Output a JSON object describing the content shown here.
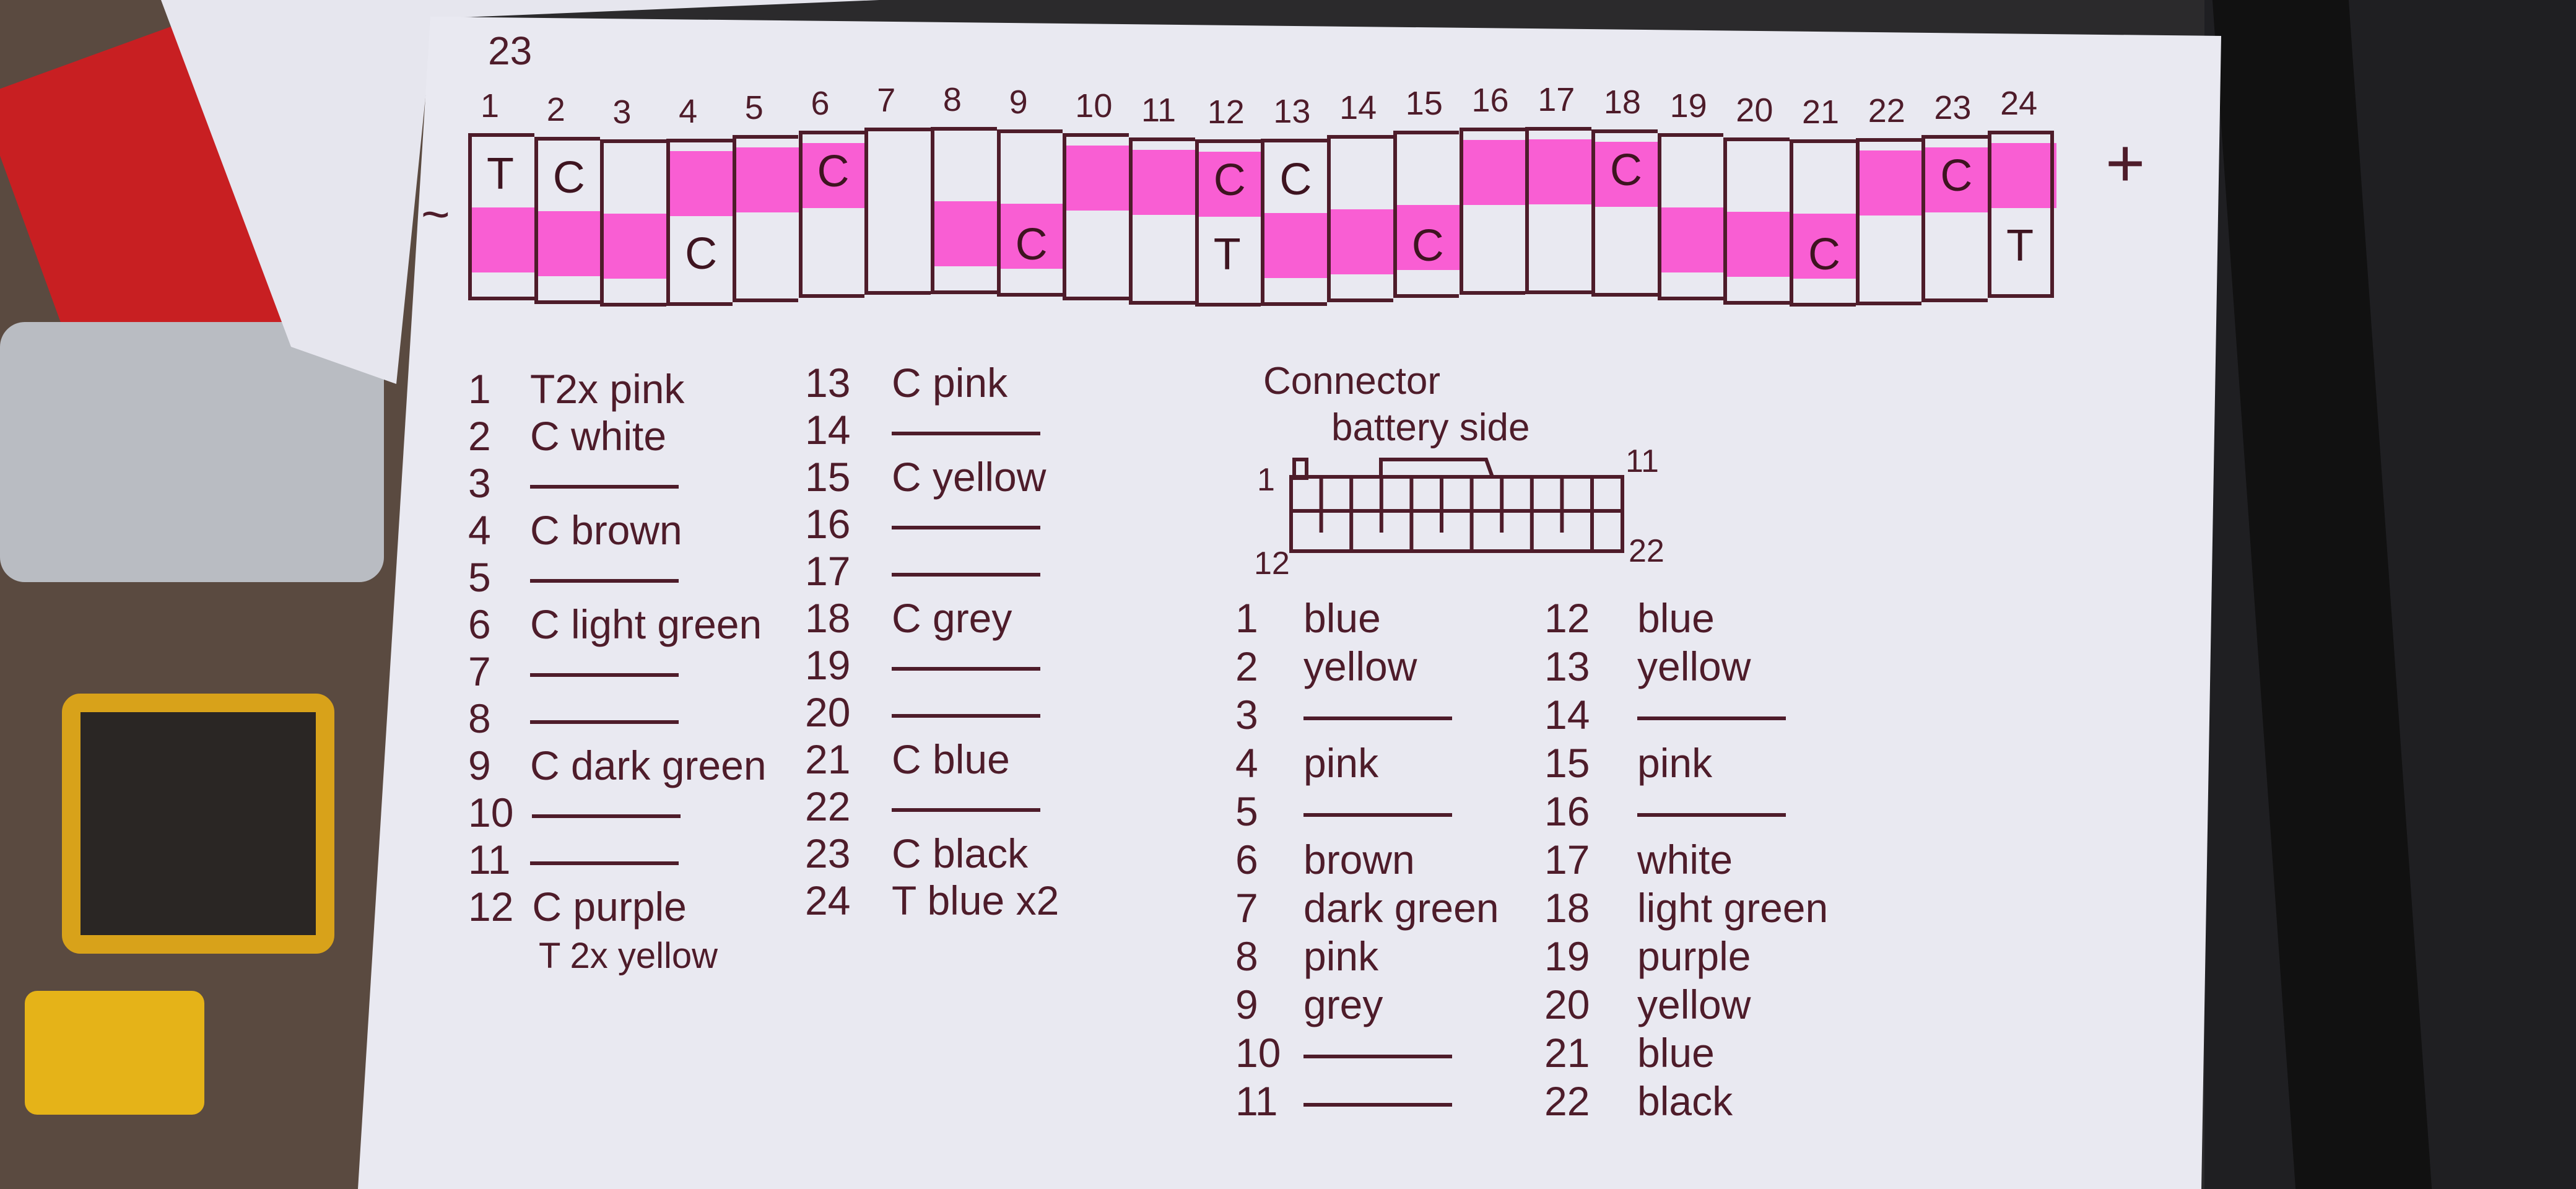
{
  "colors": {
    "ink": "#4e1c2a",
    "highlighter": "#ff28c8",
    "paper": "#e9e9f1"
  },
  "strip": {
    "corner_note": "23",
    "minus_label": "~",
    "plus_label": "+",
    "cells": [
      {
        "num": "1",
        "top": "T",
        "bottom": "",
        "highlight": "bottom"
      },
      {
        "num": "2",
        "top": "C",
        "bottom": "",
        "highlight": "bottom"
      },
      {
        "num": "3",
        "top": "",
        "bottom": "",
        "highlight": "bottom"
      },
      {
        "num": "4",
        "top": "",
        "bottom": "C",
        "highlight": "top"
      },
      {
        "num": "5",
        "top": "",
        "bottom": "",
        "highlight": "top"
      },
      {
        "num": "6",
        "top": "C",
        "bottom": "",
        "highlight": "top"
      },
      {
        "num": "7",
        "top": "",
        "bottom": "",
        "highlight": ""
      },
      {
        "num": "8",
        "top": "",
        "bottom": "",
        "highlight": "bottom"
      },
      {
        "num": "9",
        "top": "",
        "bottom": "C",
        "highlight": "bottom"
      },
      {
        "num": "10",
        "top": "",
        "bottom": "",
        "highlight": "top"
      },
      {
        "num": "11",
        "top": "",
        "bottom": "",
        "highlight": "top"
      },
      {
        "num": "12",
        "top": "C",
        "bottom": "T",
        "highlight": "top"
      },
      {
        "num": "13",
        "top": "C",
        "bottom": "",
        "highlight": "bottom"
      },
      {
        "num": "14",
        "top": "",
        "bottom": "",
        "highlight": "bottom"
      },
      {
        "num": "15",
        "top": "",
        "bottom": "C",
        "highlight": "bottom"
      },
      {
        "num": "16",
        "top": "",
        "bottom": "",
        "highlight": "top"
      },
      {
        "num": "17",
        "top": "",
        "bottom": "",
        "highlight": "top"
      },
      {
        "num": "18",
        "top": "C",
        "bottom": "",
        "highlight": "top"
      },
      {
        "num": "19",
        "top": "",
        "bottom": "",
        "highlight": "bottom"
      },
      {
        "num": "20",
        "top": "",
        "bottom": "",
        "highlight": "bottom"
      },
      {
        "num": "21",
        "top": "",
        "bottom": "C",
        "highlight": "bottom"
      },
      {
        "num": "22",
        "top": "",
        "bottom": "",
        "highlight": "top"
      },
      {
        "num": "23",
        "top": "C",
        "bottom": "",
        "highlight": "top"
      },
      {
        "num": "24",
        "top": "",
        "bottom": "T",
        "highlight": "top"
      }
    ]
  },
  "pin_list_left": [
    {
      "n": "1",
      "t": "T2x pink"
    },
    {
      "n": "2",
      "t": "C white"
    },
    {
      "n": "3",
      "t": ""
    },
    {
      "n": "4",
      "t": "C brown"
    },
    {
      "n": "5",
      "t": ""
    },
    {
      "n": "6",
      "t": "C light green"
    },
    {
      "n": "7",
      "t": ""
    },
    {
      "n": "8",
      "t": ""
    },
    {
      "n": "9",
      "t": "C dark green"
    },
    {
      "n": "10",
      "t": ""
    },
    {
      "n": "11",
      "t": ""
    },
    {
      "n": "12",
      "t": "C purple"
    }
  ],
  "pin_12_extra": "T 2x yellow",
  "pin_list_right": [
    {
      "n": "13",
      "t": "C pink"
    },
    {
      "n": "14",
      "t": ""
    },
    {
      "n": "15",
      "t": "C yellow"
    },
    {
      "n": "16",
      "t": ""
    },
    {
      "n": "17",
      "t": ""
    },
    {
      "n": "18",
      "t": "C grey"
    },
    {
      "n": "19",
      "t": ""
    },
    {
      "n": "20",
      "t": ""
    },
    {
      "n": "21",
      "t": "C blue"
    },
    {
      "n": "22",
      "t": ""
    },
    {
      "n": "23",
      "t": "C black"
    },
    {
      "n": "24",
      "t": "T blue x2"
    }
  ],
  "connector": {
    "title_line1": "Connector",
    "title_line2": "battery side",
    "label_top_left": "1",
    "label_top_right": "11",
    "label_bottom_left": "12",
    "label_bottom_right": "22",
    "pins_a": [
      {
        "n": "1",
        "t": "blue"
      },
      {
        "n": "2",
        "t": "yellow"
      },
      {
        "n": "3",
        "t": ""
      },
      {
        "n": "4",
        "t": "pink"
      },
      {
        "n": "5",
        "t": ""
      },
      {
        "n": "6",
        "t": "brown"
      },
      {
        "n": "7",
        "t": "dark green"
      },
      {
        "n": "8",
        "t": "pink"
      },
      {
        "n": "9",
        "t": "grey"
      },
      {
        "n": "10",
        "t": ""
      },
      {
        "n": "11",
        "t": ""
      }
    ],
    "pins_b": [
      {
        "n": "12",
        "t": "blue"
      },
      {
        "n": "13",
        "t": "yellow"
      },
      {
        "n": "14",
        "t": ""
      },
      {
        "n": "15",
        "t": "pink"
      },
      {
        "n": "16",
        "t": ""
      },
      {
        "n": "17",
        "t": "white"
      },
      {
        "n": "18",
        "t": "light green"
      },
      {
        "n": "19",
        "t": "purple"
      },
      {
        "n": "20",
        "t": "yellow"
      },
      {
        "n": "21",
        "t": "blue"
      },
      {
        "n": "22",
        "t": "black"
      }
    ]
  }
}
